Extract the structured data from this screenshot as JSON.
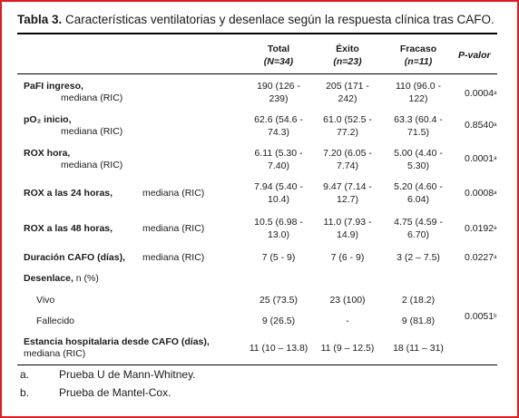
{
  "title": {
    "label": "Tabla 3.",
    "text": "Características ventilatorias y desenlace según la respuesta clínica tras CAFO."
  },
  "columns": {
    "total": {
      "name": "Total",
      "n": "(N=34)"
    },
    "exito": {
      "name": "Éxito",
      "n": "(n=23)"
    },
    "fracaso": {
      "name": "Fracaso",
      "n": "(n=11)"
    },
    "pvalor": "P-valor"
  },
  "rows": [
    {
      "label": "PaFI ingreso,",
      "sub": "mediana (RIC)",
      "total": [
        "190 (126 -",
        "239)"
      ],
      "exito": [
        "205 (171 -",
        "242)"
      ],
      "fracaso": [
        "110 (96.0 -",
        "122)"
      ],
      "p": "0.0004",
      "sup": "a"
    },
    {
      "label": "pO₂ inicio,",
      "sub": "mediana (RIC)",
      "total": [
        "62.6 (54.6 -",
        "74.3)"
      ],
      "exito": [
        "61.0 (52.5 -",
        "77.2)"
      ],
      "fracaso": [
        "63.3 (60.4 -",
        "71.5)"
      ],
      "p": "0.8540",
      "sup": "a"
    },
    {
      "label": "ROX hora,",
      "sub": "mediana (RIC)",
      "total": [
        "6.11 (5.30 -",
        "7.40)"
      ],
      "exito": [
        "7.20 (6.05 -",
        "7.74)"
      ],
      "fracaso": [
        "5.00 (4.40 -",
        "5.30)"
      ],
      "p": "0.0001",
      "sup": "a"
    },
    {
      "label": "ROX a las 24 horas,",
      "sub": "mediana (RIC)",
      "total": [
        "7.94 (5.40 -",
        "10.4)"
      ],
      "exito": [
        "9.47 (7.14 -",
        "12.7)"
      ],
      "fracaso": [
        "5.20 (4.60 -",
        "6.04)"
      ],
      "p": "0.0008",
      "sup": "a"
    },
    {
      "label": "ROX a las 48 horas,",
      "sub": "mediana (RIC)",
      "total": [
        "10.5 (6.98 -",
        "13.0)"
      ],
      "exito": [
        "11.0 (7.93 -",
        "14.9)"
      ],
      "fracaso": [
        "4.75 (4.59 -",
        "6.70)"
      ],
      "p": "0.0192",
      "sup": "a"
    },
    {
      "label": "Duración CAFO (días),",
      "sub": "mediana (RIC)",
      "total": [
        "7 (5 - 9)"
      ],
      "exito": [
        "7 (6 - 9)"
      ],
      "fracaso": [
        "3 (2 – 7.5)"
      ],
      "p": "0.0227",
      "sup": "a"
    }
  ],
  "desenlace": {
    "label": "Desenlace,",
    "unit": "n (%)",
    "vivo": {
      "label": "Vivo",
      "total": "25 (73.5)",
      "exito": "23 (100)",
      "fracaso": "2 (18.2)"
    },
    "fallecido": {
      "label": "Fallecido",
      "total": "9 (26.5)",
      "exito": "-",
      "fracaso": "9 (81.8)"
    },
    "p": "0.0051",
    "sup": "b"
  },
  "estancia": {
    "label": "Estancia hospitalaria desde CAFO (días),",
    "sub": "mediana (RIC)",
    "total": "11 (10 – 13.8)",
    "exito": "11 (9 – 12.5)",
    "fracaso": "18 (11 – 31)"
  },
  "footnotes": [
    {
      "key": "a.",
      "text": "Prueba U de Mann-Whitney."
    },
    {
      "key": "b.",
      "text": "Prueba de Mantel-Cox."
    }
  ]
}
